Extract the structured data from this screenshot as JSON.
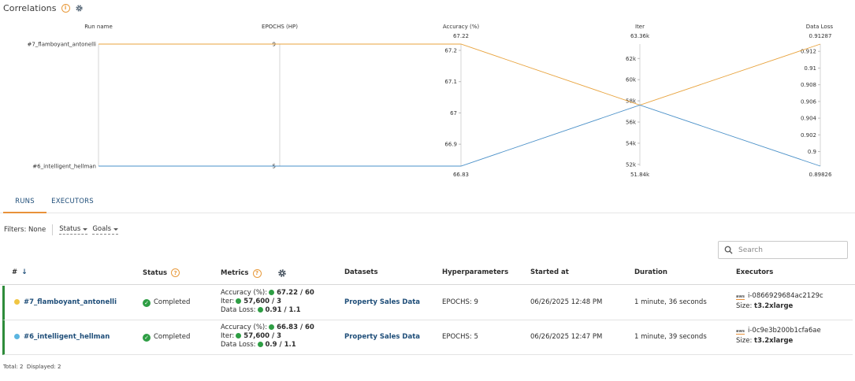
{
  "header": {
    "title": "Correlations"
  },
  "parcoords": {
    "axes": [
      {
        "label": "Run name",
        "ticks": [],
        "cat_labels": [
          "#7_flamboyant_antonelli",
          "#6_intelligent_hellman"
        ]
      },
      {
        "label": "EPOCHS (HP)",
        "ticks": [
          "9",
          "5"
        ]
      },
      {
        "label": "Accuracy (%)",
        "top": "67.22",
        "bottom": "66.83",
        "ticks": [
          "67.2",
          "67.1",
          "67",
          "66.9"
        ]
      },
      {
        "label": "Iter",
        "top": "63.36k",
        "bottom": "51.84k",
        "ticks": [
          "62k",
          "60k",
          "58k",
          "56k",
          "54k",
          "52k"
        ]
      },
      {
        "label": "Data Loss",
        "top": "0.91287",
        "bottom": "0.89826",
        "ticks": [
          "0.912",
          "0.91",
          "0.908",
          "0.906",
          "0.904",
          "0.902",
          "0.9"
        ]
      }
    ],
    "lines": [
      {
        "name": "#7_flamboyant_antonelli",
        "color": "#e8a33d",
        "values": [
          1,
          9,
          67.22,
          57600,
          0.91287
        ]
      },
      {
        "name": "#6_intelligent_hellman",
        "color": "#4a90c8",
        "values": [
          0,
          5,
          66.83,
          57600,
          0.89826
        ]
      }
    ]
  },
  "tabs": [
    {
      "label": "RUNS",
      "active": true
    },
    {
      "label": "EXECUTORS",
      "active": false
    }
  ],
  "filters": {
    "label": "Filters:",
    "value": "None",
    "status_label": "Status",
    "goals_label": "Goals"
  },
  "search": {
    "placeholder": "Search"
  },
  "table": {
    "columns": {
      "number": "#",
      "status": "Status",
      "metrics": "Metrics",
      "datasets": "Datasets",
      "hyperparameters": "Hyperparameters",
      "started": "Started at",
      "duration": "Duration",
      "executors": "Executors"
    },
    "rows": [
      {
        "name": "#7_flamboyant_antonelli",
        "dot_color": "#f0c542",
        "status": "Completed",
        "metrics": [
          {
            "label": "Accuracy (%):",
            "value": "67.22 / 60"
          },
          {
            "label": "Iter:",
            "value": "57,600 / 3"
          },
          {
            "label": "Data Loss:",
            "value": "0.91 / 1.1"
          }
        ],
        "dataset": "Property Sales Data",
        "hyperparams": "EPOCHS: 9",
        "started": "06/26/2025 12:48 PM",
        "duration": "1 minute, 36 seconds",
        "executor_id": "i-0866929684ac2129c",
        "executor_size_label": "Size:",
        "executor_size": "t3.2xlarge"
      },
      {
        "name": "#6_intelligent_hellman",
        "dot_color": "#5bb5e0",
        "status": "Completed",
        "metrics": [
          {
            "label": "Accuracy (%):",
            "value": "66.83 / 60"
          },
          {
            "label": "Iter:",
            "value": "57,600 / 3"
          },
          {
            "label": "Data Loss:",
            "value": "0.9 / 1.1"
          }
        ],
        "dataset": "Property Sales Data",
        "hyperparams": "EPOCHS: 5",
        "started": "06/26/2025 12:47 PM",
        "duration": "1 minute, 39 seconds",
        "executor_id": "i-0c9e3b200b1cfa6ae",
        "executor_size_label": "Size:",
        "executor_size": "t3.2xlarge"
      }
    ]
  },
  "footer": {
    "total_label": "Total:",
    "total": "2",
    "displayed_label": "Displayed:",
    "displayed": "2"
  },
  "icons": {
    "info": "info-icon",
    "settings": "gear-icon",
    "help": "question-icon",
    "search": "search-icon",
    "aws": "aws-icon",
    "check": "check-circle-icon"
  }
}
